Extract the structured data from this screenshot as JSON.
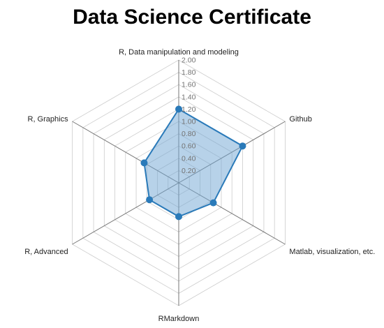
{
  "chart_data": {
    "type": "radar",
    "title": "Data Science Certificate",
    "axes": [
      "R, Data manipulation and modeling",
      "Github",
      "Matlab, visualization, etc.",
      "RMarkdown",
      "R, Advanced",
      "R, Graphics"
    ],
    "values": [
      1.2,
      1.2,
      0.65,
      0.55,
      0.55,
      0.65
    ],
    "rmax": 2.0,
    "ticks": [
      "0.20",
      "0.40",
      "0.60",
      "0.80",
      "1.00",
      "1.20",
      "1.40",
      "1.60",
      "1.80",
      "2.00"
    ],
    "series_color": "#2a7ab9",
    "fill_color": "#6fa6d3",
    "grid_color": "#cccccc",
    "axis_color": "#777777"
  }
}
